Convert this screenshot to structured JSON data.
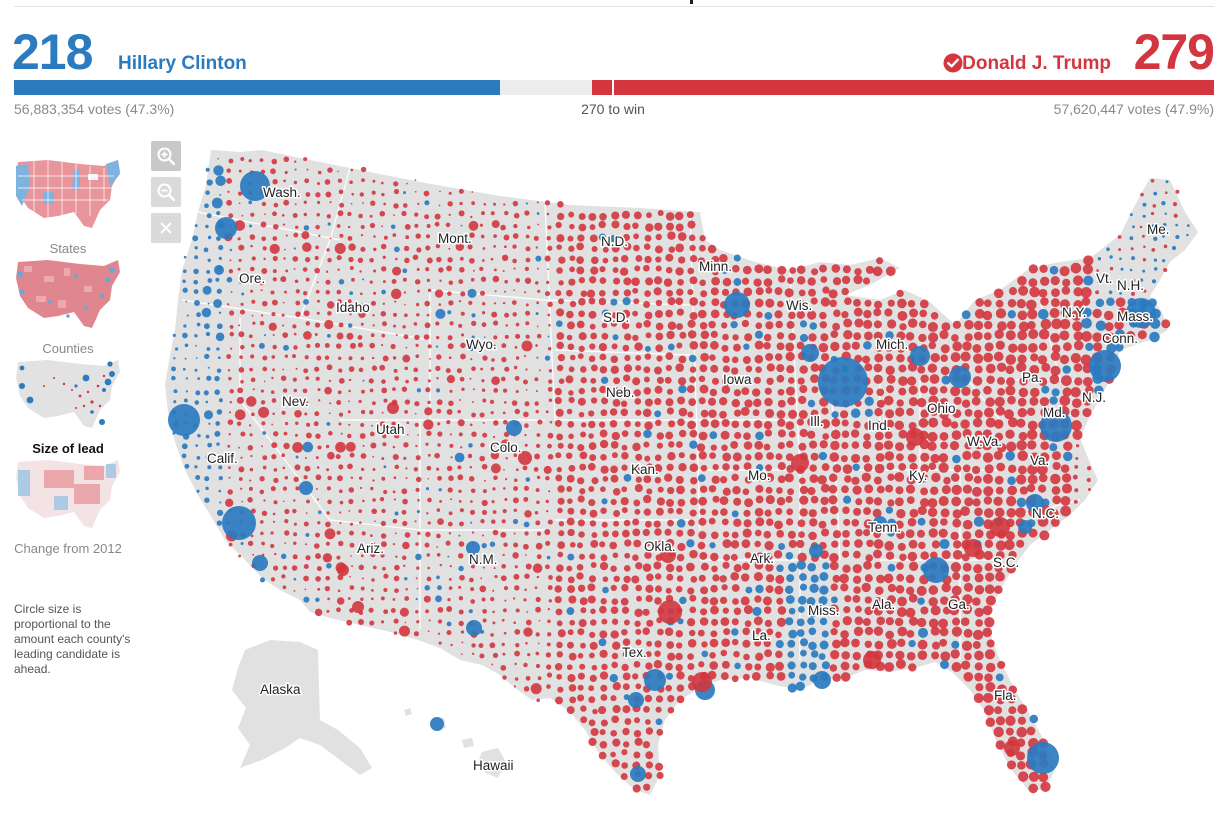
{
  "header": {
    "dem": {
      "electoral_votes": "218",
      "name": "Hillary Clinton",
      "popular": "56,883,354 votes (47.3%)",
      "color": "#2a7bc0"
    },
    "rep": {
      "electoral_votes": "279",
      "name": "Donald J. Trump",
      "popular": "57,620,447 votes (47.9%)",
      "color": "#d3363e",
      "winner_icon": "check-circle-icon"
    },
    "threshold_label": "270 to win",
    "bar": {
      "total_electoral": 538,
      "dem": 218,
      "rep": 279,
      "threshold": 270
    }
  },
  "views": [
    {
      "id": "states",
      "label": "States",
      "icon": "states-map-thumbnail",
      "active": false
    },
    {
      "id": "counties",
      "label": "Counties",
      "icon": "counties-map-thumbnail",
      "active": false
    },
    {
      "id": "size",
      "label": "Size of lead",
      "icon": "size-of-lead-map-thumbnail",
      "active": true
    },
    {
      "id": "change",
      "label": "Change from 2012",
      "icon": "change-map-thumbnail",
      "active": false
    }
  ],
  "note": "Circle size is proportional to the amount each county's leading candidate is ahead.",
  "zoom": {
    "in_icon": "zoom-in-icon",
    "out_icon": "zoom-out-icon",
    "reset_icon": "close-icon"
  },
  "map": {
    "land_color": "#e1e1e1",
    "state_labels": [
      "Wash.",
      "Ore.",
      "Calif.",
      "Idaho",
      "Nev.",
      "Utah",
      "Ariz.",
      "Mont.",
      "Wyo.",
      "Colo.",
      "N.M.",
      "N.D.",
      "S.D.",
      "Neb.",
      "Kan.",
      "Okla.",
      "Tex.",
      "Minn.",
      "Iowa",
      "Mo.",
      "Ark.",
      "La.",
      "Wis.",
      "Ill.",
      "Mich.",
      "Ind.",
      "Ohio",
      "Ky.",
      "Tenn.",
      "Miss.",
      "Ala.",
      "Ga.",
      "Fla.",
      "S.C.",
      "N.C.",
      "Va.",
      "W.Va.",
      "Pa.",
      "N.Y.",
      "Md.",
      "N.J.",
      "Conn.",
      "Mass.",
      "Vt.",
      "N.H.",
      "Me.",
      "Alaska",
      "Hawaii"
    ]
  }
}
